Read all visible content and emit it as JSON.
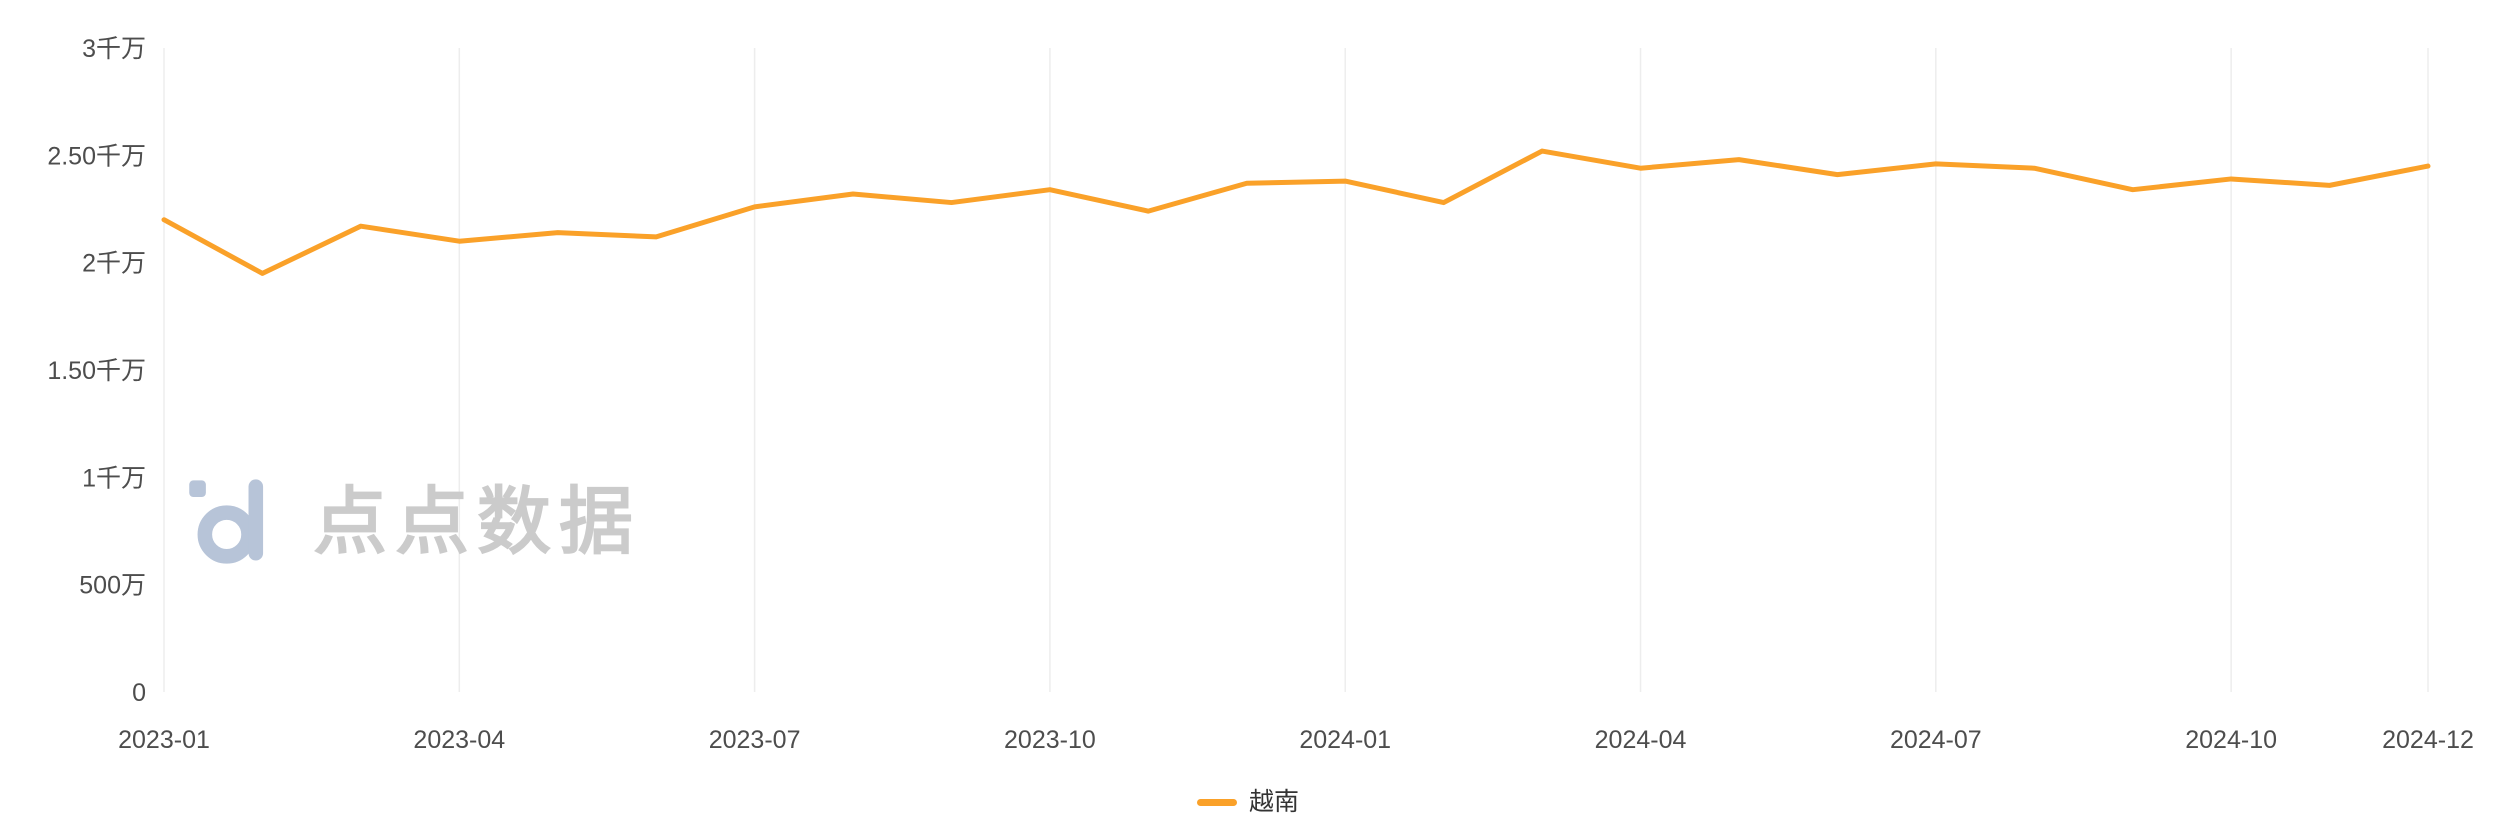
{
  "page": {
    "background_color": "#ffffff"
  },
  "watermark": {
    "text": "点点数据",
    "text_color": "#cbcbcb",
    "logo_color": "#b7c4d8"
  },
  "legend": {
    "items": [
      {
        "label": "越南",
        "color": "#FAA129"
      }
    ]
  },
  "chart_data": {
    "type": "line",
    "title": "",
    "xlabel": "",
    "ylabel": "",
    "unit": "万",
    "x": [
      "2023-01",
      "2023-02",
      "2023-03",
      "2023-04",
      "2023-05",
      "2023-06",
      "2023-07",
      "2023-08",
      "2023-09",
      "2023-10",
      "2023-11",
      "2023-12",
      "2024-01",
      "2024-02",
      "2024-03",
      "2024-04",
      "2024-05",
      "2024-06",
      "2024-07",
      "2024-08",
      "2024-09",
      "2024-10",
      "2024-11",
      "2024-12"
    ],
    "x_tick_labels": [
      "2023-01",
      "2023-04",
      "2023-07",
      "2023-10",
      "2024-01",
      "2024-04",
      "2024-07",
      "2024-10",
      "2024-12"
    ],
    "series": [
      {
        "name": "越南",
        "color": "#FAA129",
        "values": [
          2200,
          1950,
          2170,
          2100,
          2140,
          2120,
          2260,
          2320,
          2280,
          2340,
          2240,
          2370,
          2380,
          2280,
          2520,
          2440,
          2480,
          2410,
          2460,
          2440,
          2340,
          2390,
          2360,
          2450
        ]
      }
    ],
    "ylim": [
      0,
      3000
    ],
    "y_ticks": [
      {
        "value": 0,
        "label": "0"
      },
      {
        "value": 500,
        "label": "500万"
      },
      {
        "value": 1000,
        "label": "1千万"
      },
      {
        "value": 1500,
        "label": "1.50千万"
      },
      {
        "value": 2000,
        "label": "2千万"
      },
      {
        "value": 2500,
        "label": "2.50千万"
      },
      {
        "value": 3000,
        "label": "3千万"
      }
    ],
    "grid": "vertical-only",
    "grid_color": "#ededed",
    "axis_label_color": "#4d4d4d",
    "legend_position": "bottom-center",
    "line_width": 5,
    "smooth": false
  }
}
